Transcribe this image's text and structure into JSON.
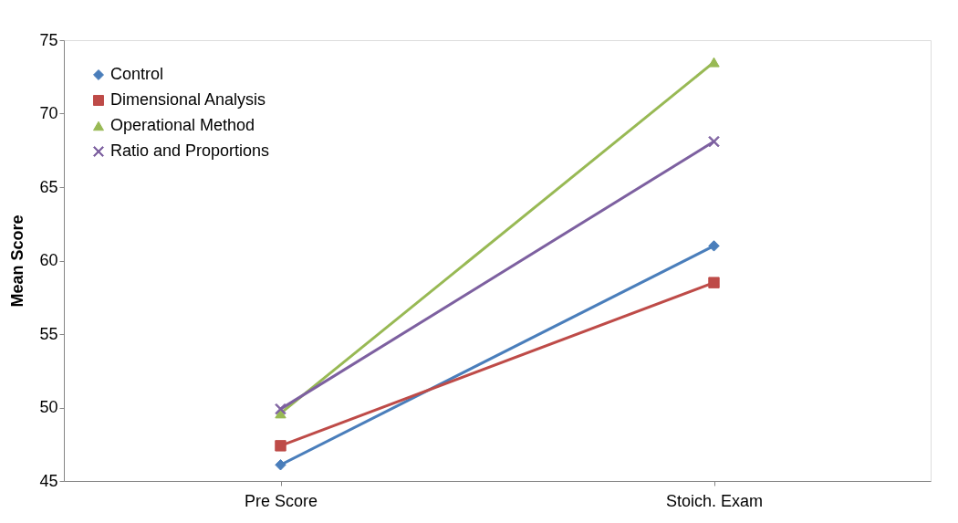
{
  "chart_data": {
    "type": "line",
    "ylabel": "Mean Score",
    "categories": [
      "Pre Score",
      "Stoich. Exam"
    ],
    "series": [
      {
        "name": "Control",
        "color": "#4a7ebb",
        "marker": "diamond",
        "values": [
          46.1,
          61
        ]
      },
      {
        "name": "Dimensional Analysis",
        "color": "#be4b48",
        "marker": "square",
        "values": [
          47.4,
          58.5
        ]
      },
      {
        "name": "Operational Method",
        "color": "#98b954",
        "marker": "triangle",
        "values": [
          49.6,
          73.5
        ]
      },
      {
        "name": "Ratio and Proportions",
        "color": "#7d60a0",
        "marker": "cross",
        "values": [
          49.9,
          68.1
        ]
      }
    ],
    "ylim": [
      45,
      75
    ],
    "yticks": [
      45,
      50,
      55,
      60,
      65,
      70,
      75
    ],
    "grid": false,
    "legend": "top left",
    "line_style": "solid"
  }
}
